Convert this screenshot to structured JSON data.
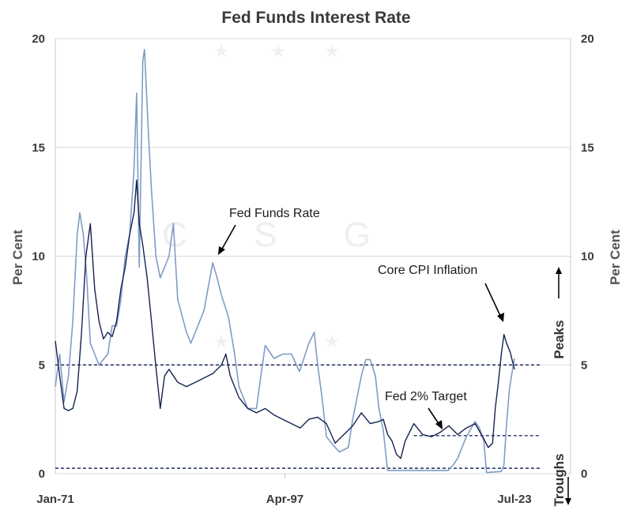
{
  "chart_data": {
    "type": "line",
    "title": "Fed Funds Interest Rate",
    "ylabel_left": "Per Cent",
    "ylabel_right": "Per Cent",
    "ylim": [
      0,
      20
    ],
    "yticks": [
      0,
      5,
      10,
      15,
      20
    ],
    "x_range": [
      1971.0,
      2023.5
    ],
    "xtick_labels": [
      "Jan-71",
      "Apr-97",
      "Jul-23"
    ],
    "xtick_positions": [
      1971.0,
      1997.25,
      2023.5
    ],
    "grid": "horizontal",
    "series": [
      {
        "name": "Fed Funds Rate",
        "color": "#7f9cc8",
        "x": [
          1971.0,
          1971.5,
          1972.0,
          1972.5,
          1973.0,
          1973.5,
          1973.8,
          1974.2,
          1974.6,
          1975.0,
          1975.5,
          1976.0,
          1977.0,
          1977.5,
          1978.0,
          1978.5,
          1979.0,
          1979.5,
          1980.0,
          1980.3,
          1980.6,
          1981.0,
          1981.2,
          1981.6,
          1982.0,
          1982.5,
          1983.0,
          1983.5,
          1984.0,
          1984.5,
          1985.0,
          1986.0,
          1986.5,
          1987.0,
          1988.0,
          1989.0,
          1989.5,
          1990.0,
          1990.8,
          1991.5,
          1992.0,
          1993.0,
          1994.0,
          1994.5,
          1995.0,
          1996.0,
          1997.0,
          1998.0,
          1998.9,
          1999.0,
          2000.0,
          2000.6,
          2001.0,
          2001.5,
          2002.0,
          2003.0,
          2003.5,
          2004.5,
          2005.0,
          2006.0,
          2006.5,
          2007.0,
          2007.6,
          2008.0,
          2008.5,
          2009.0,
          2015.9,
          2016.5,
          2017.0,
          2018.0,
          2019.0,
          2019.5,
          2020.0,
          2020.3,
          2022.0,
          2022.3,
          2022.6,
          2022.9,
          2023.2,
          2023.5
        ],
        "y": [
          4.0,
          5.5,
          3.3,
          4.5,
          7.0,
          11.0,
          12.0,
          11.0,
          9.0,
          6.0,
          5.5,
          5.0,
          5.5,
          6.8,
          6.8,
          8.0,
          10.0,
          11.0,
          14.0,
          17.5,
          9.5,
          19.0,
          19.5,
          16.0,
          13.0,
          10.0,
          9.0,
          9.5,
          10.0,
          11.5,
          8.0,
          6.5,
          6.0,
          6.5,
          7.5,
          9.7,
          9.0,
          8.2,
          7.2,
          5.5,
          4.0,
          3.0,
          3.0,
          4.5,
          5.9,
          5.3,
          5.5,
          5.5,
          4.7,
          4.8,
          6.0,
          6.5,
          5.0,
          3.5,
          1.7,
          1.2,
          1.0,
          1.2,
          2.5,
          4.5,
          5.25,
          5.25,
          4.5,
          3.0,
          2.0,
          0.15,
          0.15,
          0.4,
          0.7,
          1.7,
          2.4,
          2.1,
          1.5,
          0.05,
          0.1,
          0.4,
          2.3,
          3.8,
          4.6,
          5.3
        ]
      },
      {
        "name": "Core CPI Inflation",
        "color": "#14234f",
        "x": [
          1971.0,
          1971.5,
          1972.0,
          1972.5,
          1973.0,
          1973.5,
          1974.0,
          1974.5,
          1975.0,
          1975.5,
          1976.0,
          1976.5,
          1977.0,
          1977.5,
          1978.0,
          1978.5,
          1979.0,
          1979.5,
          1980.0,
          1980.3,
          1980.6,
          1981.0,
          1981.5,
          1982.0,
          1982.5,
          1983.0,
          1983.5,
          1984.0,
          1985.0,
          1986.0,
          1987.0,
          1988.0,
          1989.0,
          1990.0,
          1990.5,
          1991.0,
          1992.0,
          1993.0,
          1994.0,
          1995.0,
          1996.0,
          1997.0,
          1998.0,
          1999.0,
          2000.0,
          2001.0,
          2002.0,
          2003.0,
          2004.0,
          2005.0,
          2006.0,
          2007.0,
          2008.0,
          2008.5,
          2009.0,
          2009.5,
          2010.0,
          2010.5,
          2011.0,
          2012.0,
          2013.0,
          2014.0,
          2015.0,
          2016.0,
          2017.0,
          2018.0,
          2019.0,
          2020.0,
          2020.5,
          2021.0,
          2021.3,
          2021.6,
          2022.0,
          2022.3,
          2022.6,
          2023.0,
          2023.5
        ],
        "y": [
          6.1,
          4.5,
          3.0,
          2.9,
          3.0,
          3.8,
          6.5,
          10.0,
          11.5,
          8.5,
          7.0,
          6.2,
          6.5,
          6.3,
          7.0,
          8.5,
          9.5,
          11.0,
          12.0,
          13.5,
          11.5,
          10.5,
          9.0,
          7.0,
          4.9,
          3.0,
          4.5,
          4.8,
          4.2,
          4.0,
          4.2,
          4.4,
          4.6,
          5.0,
          5.5,
          4.5,
          3.5,
          3.0,
          2.8,
          3.0,
          2.7,
          2.5,
          2.3,
          2.1,
          2.5,
          2.6,
          2.3,
          1.4,
          1.8,
          2.2,
          2.8,
          2.3,
          2.4,
          2.5,
          1.8,
          1.5,
          0.9,
          0.7,
          1.5,
          2.3,
          1.8,
          1.7,
          1.9,
          2.2,
          1.8,
          2.1,
          2.3,
          1.6,
          1.2,
          1.4,
          3.0,
          4.0,
          5.5,
          6.4,
          6.0,
          5.6,
          4.8
        ]
      }
    ],
    "reference_lines": [
      {
        "value": 5.0,
        "x_start": 1971.0,
        "x_end": 2026.4,
        "style": "dashed"
      },
      {
        "value": 1.75,
        "x_start": 2012.0,
        "x_end": 2026.4,
        "style": "dashed"
      },
      {
        "value": 0.25,
        "x_start": 1971.0,
        "x_end": 2026.4,
        "style": "dashed"
      }
    ],
    "annotations": [
      {
        "text": "Fed Funds Rate",
        "target": [
          1991.2,
          9.9
        ]
      },
      {
        "text": "Core CPI Inflation",
        "target": [
          2022.3,
          7.0
        ]
      },
      {
        "text": "Fed 2% Target",
        "target": [
          2014.9,
          1.85
        ]
      }
    ],
    "side_labels": {
      "peaks": "Peaks",
      "troughs": "Troughs"
    },
    "watermark": "C S G"
  }
}
